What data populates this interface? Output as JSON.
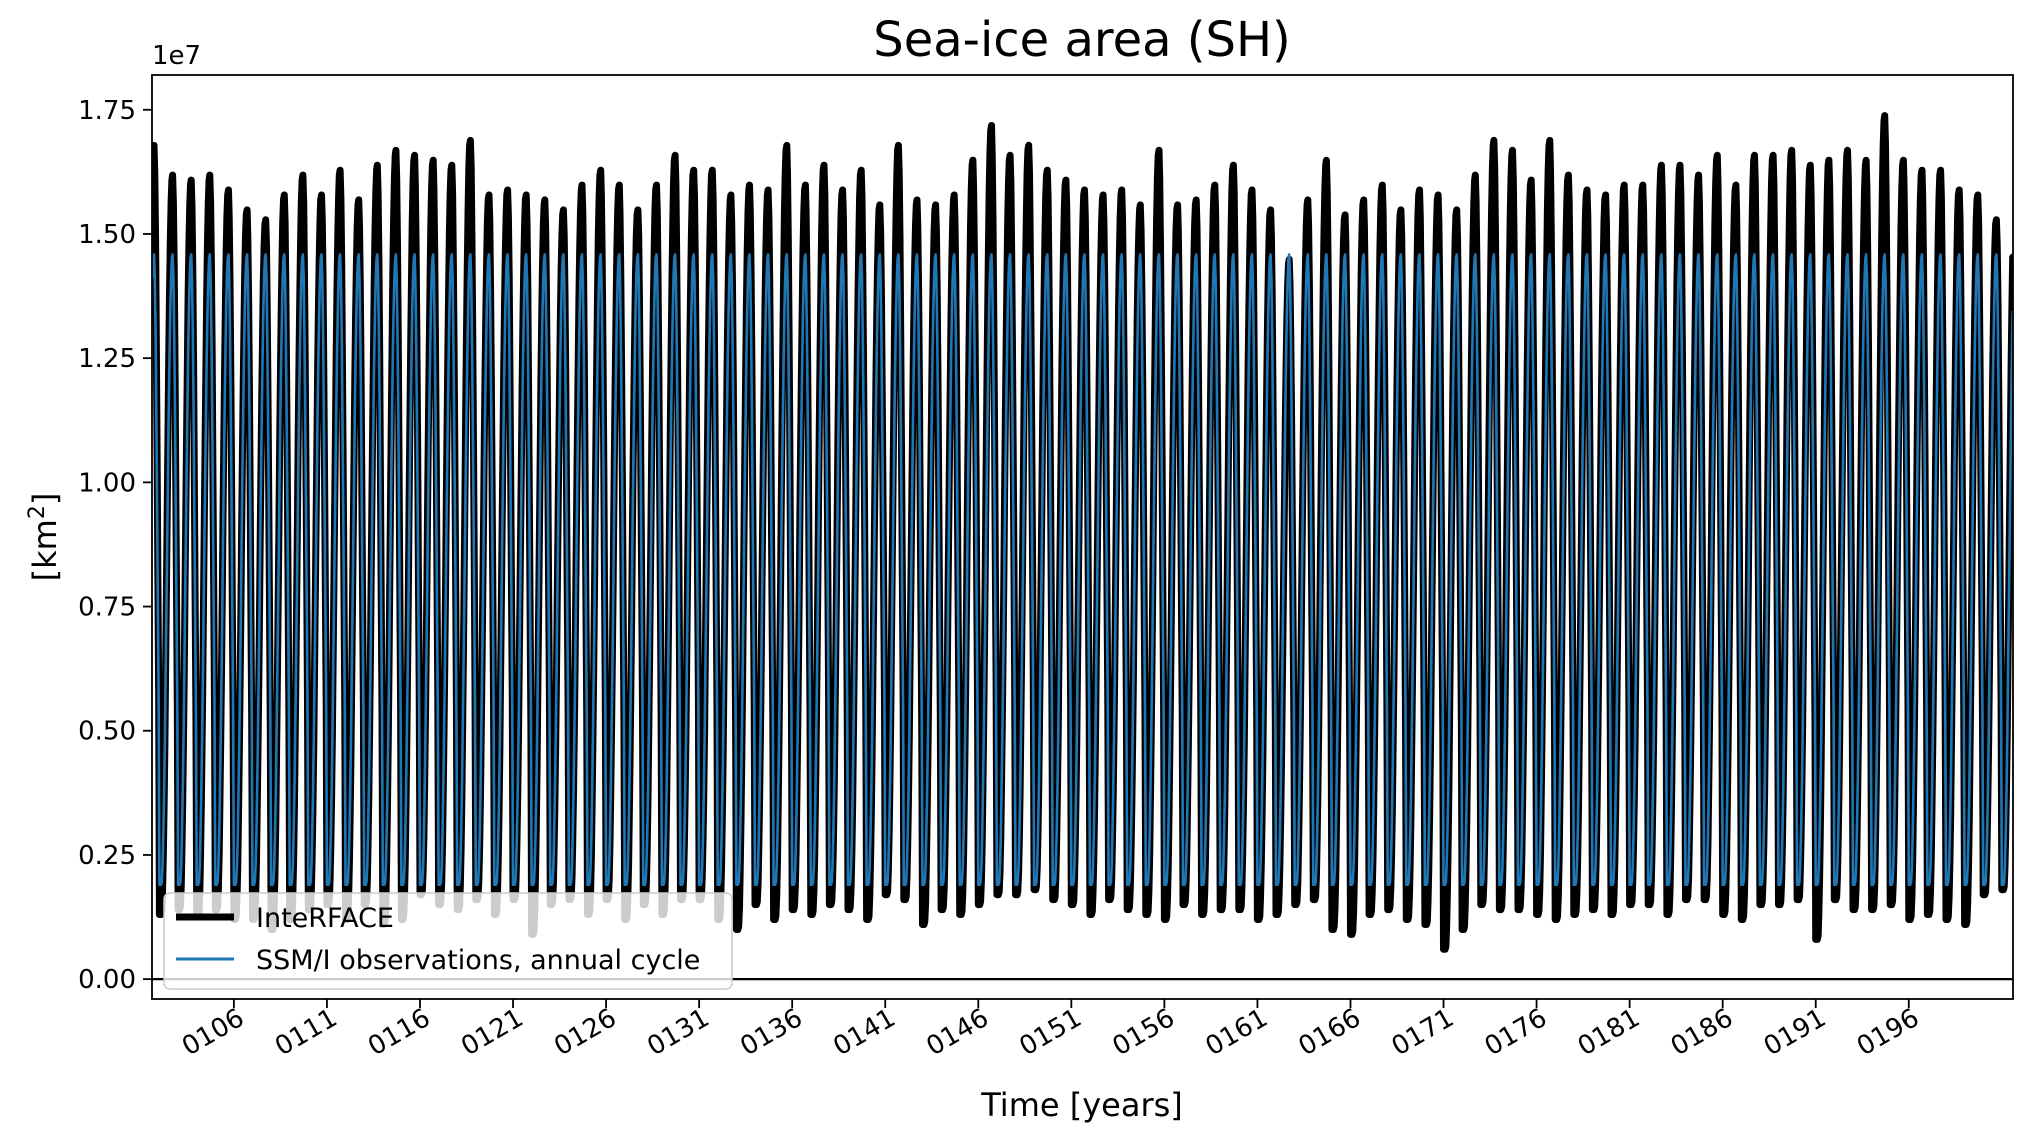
{
  "chart_data": {
    "type": "line",
    "title": "Sea-ice area (SH)",
    "xlabel": "Time [years]",
    "ylabel_prefix": "[km",
    "ylabel_sup": "2",
    "ylabel_suffix": "]",
    "y_offset_label": "1e7",
    "xlim": [
      101.6,
      201.6
    ],
    "ylim": [
      -0.4,
      18.2
    ],
    "y_scale_factor": 10000000,
    "y_ticks": [
      0,
      2.5,
      5,
      7.5,
      10,
      12.5,
      15,
      17.5
    ],
    "y_tick_labels": [
      "0.00",
      "0.25",
      "0.50",
      "0.75",
      "1.00",
      "1.25",
      "1.50",
      "1.75"
    ],
    "x_ticks": [
      106,
      111,
      116,
      121,
      126,
      131,
      136,
      141,
      146,
      151,
      156,
      161,
      166,
      171,
      176,
      181,
      186,
      191,
      196
    ],
    "x_tick_labels": [
      "0106",
      "0111",
      "0116",
      "0121",
      "0126",
      "0131",
      "0136",
      "0141",
      "0146",
      "0151",
      "0156",
      "0161",
      "0166",
      "0171",
      "0176",
      "0181",
      "0186",
      "0191",
      "0196"
    ],
    "zero_line": 0,
    "legend_location": "lower left",
    "start_year": 101.6,
    "end_year": 201.6,
    "series": [
      {
        "name": "InteRFACE",
        "color": "#000000",
        "style": "thick",
        "annual_maxima": [
          16.8,
          16.2,
          16.1,
          16.2,
          15.9,
          15.5,
          15.3,
          15.8,
          16.2,
          15.8,
          16.3,
          15.7,
          16.4,
          16.7,
          16.6,
          16.5,
          16.4,
          16.9,
          15.8,
          15.9,
          15.8,
          15.7,
          15.5,
          16.0,
          16.3,
          16.0,
          15.5,
          16.0,
          16.6,
          16.3,
          16.3,
          15.8,
          16.0,
          15.9,
          16.8,
          16.0,
          16.4,
          15.9,
          16.3,
          15.6,
          16.8,
          15.7,
          15.6,
          15.8,
          16.5,
          17.2,
          16.6,
          16.8,
          16.3,
          16.1,
          15.9,
          15.8,
          15.9,
          15.6,
          16.7,
          15.6,
          15.7,
          16.0,
          16.4,
          15.9,
          15.5,
          14.5,
          15.7,
          16.5,
          15.4,
          15.7,
          16.0,
          15.5,
          15.9,
          15.8,
          15.5,
          16.2,
          16.9,
          16.7,
          16.1,
          16.9,
          16.2,
          15.9,
          15.8,
          16.0,
          16.0,
          16.4,
          16.4,
          16.2,
          16.6,
          16.0,
          16.6,
          16.6,
          16.7,
          16.4,
          16.5,
          16.7,
          16.5,
          17.4,
          16.5,
          16.3,
          16.3,
          15.9,
          15.8,
          15.3,
          15.8
        ],
        "annual_minima": [
          1.9,
          1.3,
          1.4,
          1.3,
          1.4,
          1.2,
          1.2,
          1.0,
          1.2,
          1.4,
          1.5,
          1.2,
          1.5,
          1.1,
          1.2,
          1.7,
          1.5,
          1.4,
          1.6,
          1.3,
          1.6,
          0.9,
          1.5,
          1.6,
          1.3,
          1.6,
          1.2,
          1.5,
          1.3,
          1.6,
          1.6,
          1.2,
          1.0,
          1.5,
          1.2,
          1.4,
          1.3,
          1.5,
          1.4,
          1.2,
          1.7,
          1.6,
          1.1,
          1.4,
          1.3,
          1.5,
          1.7,
          1.7,
          1.8,
          1.6,
          1.5,
          1.3,
          1.6,
          1.4,
          1.3,
          1.2,
          1.5,
          1.3,
          1.4,
          1.4,
          1.2,
          1.3,
          1.5,
          1.6,
          1.0,
          0.9,
          1.3,
          1.4,
          1.2,
          1.1,
          0.6,
          1.0,
          1.5,
          1.4,
          1.4,
          1.3,
          1.2,
          1.3,
          1.4,
          1.3,
          1.5,
          1.5,
          1.3,
          1.6,
          1.6,
          1.3,
          1.2,
          1.5,
          1.5,
          1.6,
          0.8,
          1.6,
          1.4,
          1.4,
          1.5,
          1.2,
          1.3,
          1.2,
          1.1,
          1.7,
          1.8
        ]
      },
      {
        "name": "SSM/I observations, annual cycle",
        "color": "#1f77b4",
        "style": "thin",
        "cycle_max": 14.6,
        "cycle_min": 1.9
      }
    ]
  }
}
